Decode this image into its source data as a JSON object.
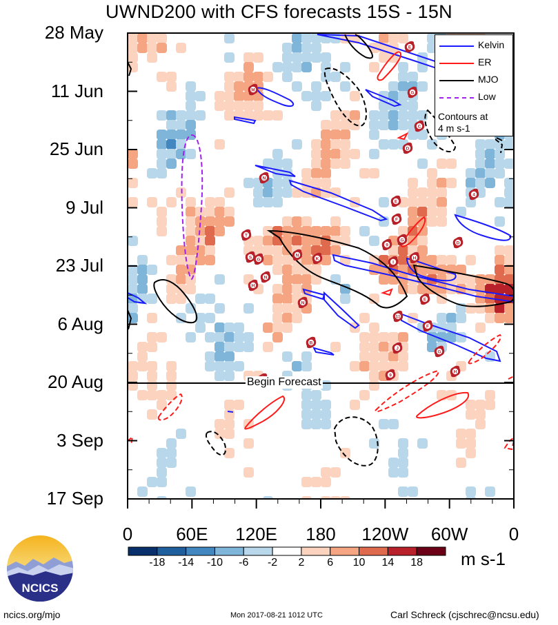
{
  "title": "UWND200 with CFS forecasts  15S - 15N",
  "chart_data": {
    "type": "heatmap",
    "title": "UWND200 with CFS forecasts  15S - 15N",
    "x_ticks": [
      "0",
      "60E",
      "120E",
      "180",
      "120W",
      "60W",
      "0"
    ],
    "y_ticks": [
      "28 May",
      "11 Jun",
      "25 Jun",
      "9 Jul",
      "23 Jul",
      "6 Aug",
      "20 Aug",
      "3 Sep",
      "17 Sep"
    ],
    "colorbar_levels": [
      "-18",
      "-14",
      "-10",
      "-6",
      "-2",
      "2",
      "6",
      "10",
      "14",
      "18"
    ],
    "colorbar_colors": [
      "#08306b",
      "#1f5f9e",
      "#4287c0",
      "#7fb5d9",
      "#b8d7ea",
      "#ffffff",
      "#fcd3bf",
      "#f5a582",
      "#e06a4e",
      "#b8212a",
      "#6b0016"
    ],
    "units": "m s-1",
    "legend": [
      {
        "label": "Kelvin",
        "color": "#1a1aff",
        "style": "solid"
      },
      {
        "label": "ER",
        "color": "#ff1a1a",
        "style": "solid"
      },
      {
        "label": "MJO",
        "color": "#000000",
        "style": "solid"
      },
      {
        "label": "Low",
        "color": "#a020f0",
        "style": "dashed"
      }
    ],
    "contour_note": "Contours at\n4 m s-1",
    "forecast_marker": "Begin Forecast"
  },
  "footer": {
    "left": "ncics.org/mjo",
    "middle": "Mon 2017-08-21 1012 UTC",
    "right": "Carl Schreck (cjschrec@ncsu.edu)"
  },
  "logo_text": "NCICS",
  "storms": [
    {
      "letter": "E",
      "x": 594,
      "y": 68
    },
    {
      "letter": "M",
      "x": 367,
      "y": 130
    },
    {
      "letter": "G",
      "x": 598,
      "y": 134
    },
    {
      "letter": "C",
      "x": 608,
      "y": 183
    },
    {
      "letter": "D",
      "x": 591,
      "y": 215
    },
    {
      "letter": "N",
      "x": 383,
      "y": 258
    },
    {
      "letter": "4",
      "x": 687,
      "y": 282
    },
    {
      "letter": "E",
      "x": 574,
      "y": 292
    },
    {
      "letter": "F",
      "x": 575,
      "y": 318
    },
    {
      "letter": "T",
      "x": 357,
      "y": 341
    },
    {
      "letter": "G",
      "x": 583,
      "y": 348
    },
    {
      "letter": "9",
      "x": 561,
      "y": 355
    },
    {
      "letter": "D",
      "x": 664,
      "y": 352
    },
    {
      "letter": "S",
      "x": 363,
      "y": 373
    },
    {
      "letter": "G",
      "x": 375,
      "y": 376
    },
    {
      "letter": "N",
      "x": 431,
      "y": 370
    },
    {
      "letter": "K",
      "x": 460,
      "y": 375
    },
    {
      "letter": "H",
      "x": 601,
      "y": 374
    },
    {
      "letter": "I",
      "x": 570,
      "y": 380
    },
    {
      "letter": "N",
      "x": 385,
      "y": 402
    },
    {
      "letter": "H",
      "x": 367,
      "y": 414
    },
    {
      "letter": "E",
      "x": 616,
      "y": 434
    },
    {
      "letter": "N",
      "x": 439,
      "y": 439
    },
    {
      "letter": "11",
      "x": 577,
      "y": 459
    },
    {
      "letter": "F",
      "x": 620,
      "y": 473
    },
    {
      "letter": "B",
      "x": 451,
      "y": 497
    },
    {
      "letter": "J",
      "x": 576,
      "y": 505
    },
    {
      "letter": "G",
      "x": 637,
      "y": 510
    },
    {
      "letter": "H",
      "x": 660,
      "y": 539
    },
    {
      "letter": "9",
      "x": 566,
      "y": 544
    },
    {
      "letter": "H",
      "x": 381,
      "y": 550
    }
  ]
}
